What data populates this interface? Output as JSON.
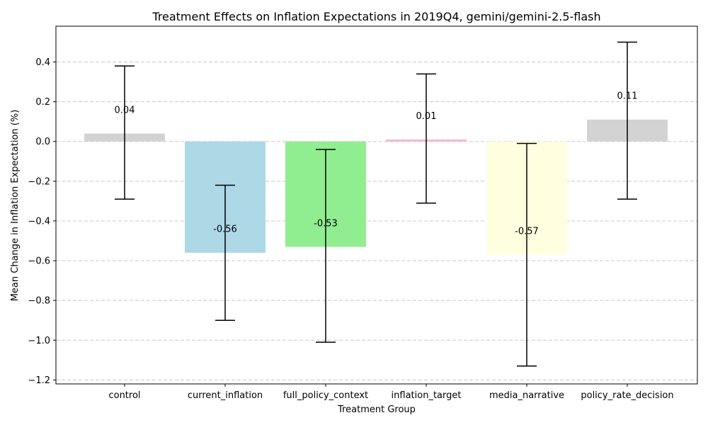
{
  "chart_data": {
    "type": "bar",
    "title": "Treatment Effects on Inflation Expectations in 2019Q4, gemini/gemini-2.5-flash",
    "xlabel": "Treatment Group",
    "ylabel": "Mean Change in Inflation Expectation (%)",
    "categories": [
      "control",
      "current_inflation",
      "full_policy_context",
      "inflation_target",
      "media_narrative",
      "policy_rate_decision"
    ],
    "values": [
      0.04,
      -0.56,
      -0.53,
      0.01,
      -0.57,
      0.11
    ],
    "value_labels": [
      "0.04",
      "-0.56",
      "-0.53",
      "0.01",
      "-0.57",
      "0.11"
    ],
    "error_low": [
      -0.29,
      -0.9,
      -1.01,
      -0.31,
      -1.13,
      -0.29
    ],
    "error_high": [
      0.38,
      -0.22,
      -0.04,
      0.34,
      -0.01,
      0.5
    ],
    "colors": [
      "#d3d3d3",
      "#add8e6",
      "#90ee90",
      "#ffb6c1",
      "#ffffe0",
      "#d3d3d3"
    ],
    "ylim": [
      -1.22,
      0.58
    ],
    "yticks": [
      0.4,
      0.2,
      0.0,
      -0.2,
      -0.4,
      -0.6,
      -0.8,
      -1.0,
      -1.2
    ],
    "ytick_labels": [
      "0.4",
      "0.2",
      "0.0",
      "−0.2",
      "−0.4",
      "−0.6",
      "−0.8",
      "−1.0",
      "−1.2"
    ],
    "grid": "y-dashed",
    "legend": "none"
  }
}
